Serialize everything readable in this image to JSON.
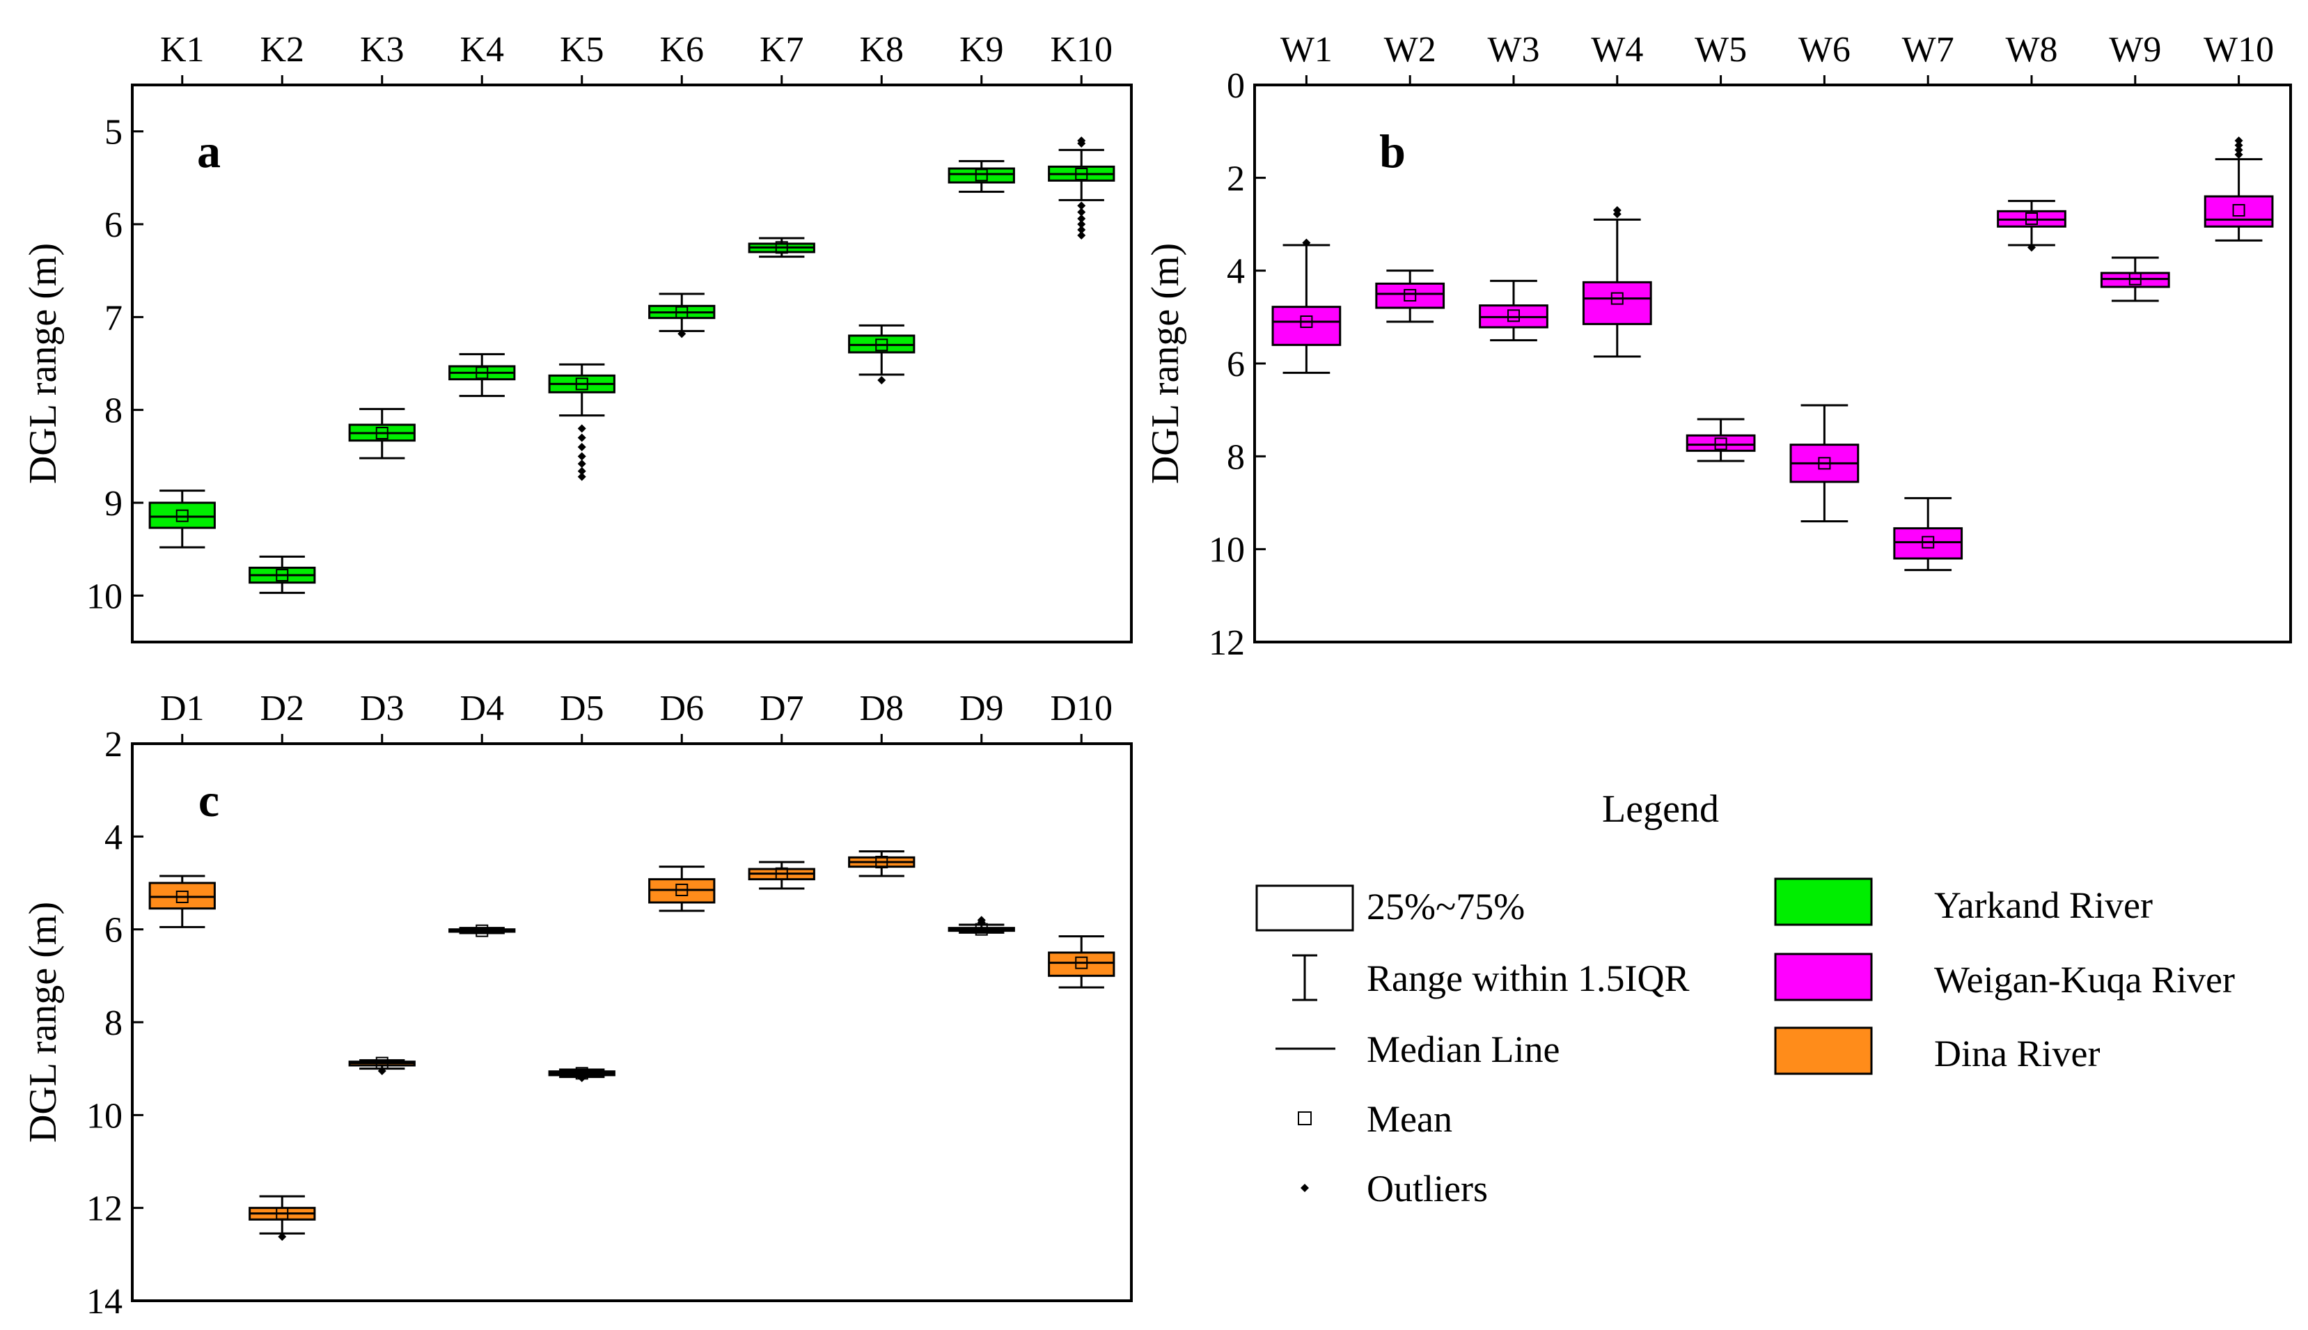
{
  "chart_data": [
    {
      "type": "box",
      "panel": "a",
      "ylabel": "DGL range (m)",
      "y_inverted": true,
      "ylim": [
        4.5,
        10.5
      ],
      "yticks": [
        5,
        6,
        7,
        8,
        9,
        10
      ],
      "categories": [
        "K1",
        "K2",
        "K3",
        "K4",
        "K5",
        "K6",
        "K7",
        "K8",
        "K9",
        "K10"
      ],
      "series_color": "#00ee00",
      "boxes": [
        {
          "min": 8.87,
          "q1": 9.0,
          "median": 9.15,
          "q3": 9.27,
          "max": 9.48,
          "mean": 9.14,
          "outliers": []
        },
        {
          "min": 9.58,
          "q1": 9.7,
          "median": 9.78,
          "q3": 9.86,
          "max": 9.97,
          "mean": 9.78,
          "outliers": []
        },
        {
          "min": 7.99,
          "q1": 8.16,
          "median": 8.25,
          "q3": 8.33,
          "max": 8.52,
          "mean": 8.25,
          "outliers": []
        },
        {
          "min": 7.4,
          "q1": 7.53,
          "median": 7.6,
          "q3": 7.67,
          "max": 7.85,
          "mean": 7.6,
          "outliers": []
        },
        {
          "min": 7.51,
          "q1": 7.63,
          "median": 7.72,
          "q3": 7.81,
          "max": 8.06,
          "mean": 7.72,
          "outliers": [
            8.2,
            8.3,
            8.4,
            8.5,
            8.58,
            8.66,
            8.72
          ]
        },
        {
          "min": 6.75,
          "q1": 6.88,
          "median": 6.95,
          "q3": 7.01,
          "max": 7.15,
          "mean": 6.95,
          "outliers": [
            7.18
          ]
        },
        {
          "min": 6.15,
          "q1": 6.21,
          "median": 6.25,
          "q3": 6.3,
          "max": 6.35,
          "mean": 6.25,
          "outliers": []
        },
        {
          "min": 7.09,
          "q1": 7.2,
          "median": 7.3,
          "q3": 7.38,
          "max": 7.62,
          "mean": 7.3,
          "outliers": [
            7.68
          ]
        },
        {
          "min": 5.32,
          "q1": 5.4,
          "median": 5.46,
          "q3": 5.55,
          "max": 5.65,
          "mean": 5.47,
          "outliers": []
        },
        {
          "min": 5.2,
          "q1": 5.38,
          "median": 5.46,
          "q3": 5.53,
          "max": 5.74,
          "mean": 5.46,
          "outliers": [
            5.1,
            5.13,
            5.8,
            5.87,
            5.94,
            6.0,
            6.06,
            6.12
          ]
        }
      ]
    },
    {
      "type": "box",
      "panel": "b",
      "ylabel": "DGL range (m)",
      "y_inverted": true,
      "ylim": [
        0,
        12
      ],
      "yticks": [
        0,
        2,
        4,
        6,
        8,
        10,
        12
      ],
      "categories": [
        "W1",
        "W2",
        "W3",
        "W4",
        "W5",
        "W6",
        "W7",
        "W8",
        "W9",
        "W10"
      ],
      "series_color": "#ff00ff",
      "boxes": [
        {
          "min": 3.45,
          "q1": 4.78,
          "median": 5.1,
          "q3": 5.6,
          "max": 6.2,
          "mean": 5.1,
          "outliers": [
            3.4
          ]
        },
        {
          "min": 4.0,
          "q1": 4.28,
          "median": 4.5,
          "q3": 4.8,
          "max": 5.1,
          "mean": 4.53,
          "outliers": []
        },
        {
          "min": 4.22,
          "q1": 4.75,
          "median": 5.0,
          "q3": 5.22,
          "max": 5.5,
          "mean": 4.97,
          "outliers": []
        },
        {
          "min": 2.9,
          "q1": 4.25,
          "median": 4.6,
          "q3": 5.15,
          "max": 5.85,
          "mean": 4.6,
          "outliers": [
            2.7,
            2.78
          ]
        },
        {
          "min": 7.2,
          "q1": 7.55,
          "median": 7.75,
          "q3": 7.88,
          "max": 8.1,
          "mean": 7.73,
          "outliers": []
        },
        {
          "min": 6.9,
          "q1": 7.75,
          "median": 8.15,
          "q3": 8.55,
          "max": 9.4,
          "mean": 8.15,
          "outliers": []
        },
        {
          "min": 8.9,
          "q1": 9.55,
          "median": 9.85,
          "q3": 10.2,
          "max": 10.45,
          "mean": 9.85,
          "outliers": []
        },
        {
          "min": 2.5,
          "q1": 2.72,
          "median": 2.9,
          "q3": 3.05,
          "max": 3.45,
          "mean": 2.88,
          "outliers": [
            3.5
          ]
        },
        {
          "min": 3.72,
          "q1": 4.05,
          "median": 4.18,
          "q3": 4.35,
          "max": 4.65,
          "mean": 4.18,
          "outliers": []
        },
        {
          "min": 1.6,
          "q1": 2.4,
          "median": 2.9,
          "q3": 3.05,
          "max": 3.35,
          "mean": 2.7,
          "outliers": [
            1.2,
            1.3,
            1.4,
            1.5
          ]
        }
      ]
    },
    {
      "type": "box",
      "panel": "c",
      "ylabel": "DGL range (m)",
      "y_inverted": true,
      "ylim": [
        2,
        14
      ],
      "yticks": [
        2,
        4,
        6,
        8,
        10,
        12,
        14
      ],
      "categories": [
        "D1",
        "D2",
        "D3",
        "D4",
        "D5",
        "D6",
        "D7",
        "D8",
        "D9",
        "D10"
      ],
      "series_color": "#ff8c1a",
      "boxes": [
        {
          "min": 4.85,
          "q1": 5.0,
          "median": 5.3,
          "q3": 5.55,
          "max": 5.95,
          "mean": 5.3,
          "outliers": []
        },
        {
          "min": 11.75,
          "q1": 12.0,
          "median": 12.12,
          "q3": 12.25,
          "max": 12.55,
          "mean": 12.12,
          "outliers": [
            12.62
          ]
        },
        {
          "min": 8.82,
          "q1": 8.85,
          "median": 8.88,
          "q3": 8.93,
          "max": 9.0,
          "mean": 8.88,
          "outliers": [
            9.05
          ]
        },
        {
          "min": 5.97,
          "q1": 6.0,
          "median": 6.03,
          "q3": 6.05,
          "max": 6.08,
          "mean": 6.03,
          "outliers": []
        },
        {
          "min": 9.02,
          "q1": 9.06,
          "median": 9.1,
          "q3": 9.14,
          "max": 9.18,
          "mean": 9.1,
          "outliers": [
            9.2
          ]
        },
        {
          "min": 4.65,
          "q1": 4.92,
          "median": 5.15,
          "q3": 5.42,
          "max": 5.6,
          "mean": 5.15,
          "outliers": []
        },
        {
          "min": 4.55,
          "q1": 4.7,
          "median": 4.8,
          "q3": 4.92,
          "max": 5.12,
          "mean": 4.8,
          "outliers": []
        },
        {
          "min": 4.32,
          "q1": 4.45,
          "median": 4.55,
          "q3": 4.65,
          "max": 4.85,
          "mean": 4.55,
          "outliers": []
        },
        {
          "min": 5.9,
          "q1": 5.97,
          "median": 6.0,
          "q3": 6.03,
          "max": 6.07,
          "mean": 6.0,
          "outliers": [
            5.8,
            5.85
          ]
        },
        {
          "min": 6.15,
          "q1": 6.5,
          "median": 6.72,
          "q3": 7.0,
          "max": 7.25,
          "mean": 6.72,
          "outliers": []
        }
      ]
    }
  ],
  "legend": {
    "title": "Legend",
    "items": {
      "box": "25%~75%",
      "whisker": "Range within 1.5IQR",
      "median": "Median Line",
      "mean": "Mean",
      "outliers": "Outliers"
    },
    "rivers": [
      {
        "label": "Yarkand River",
        "color": "#00ee00"
      },
      {
        "label": "Weigan-Kuqa River",
        "color": "#ff00ff"
      },
      {
        "label": "Dina River",
        "color": "#ff8c1a"
      }
    ]
  }
}
